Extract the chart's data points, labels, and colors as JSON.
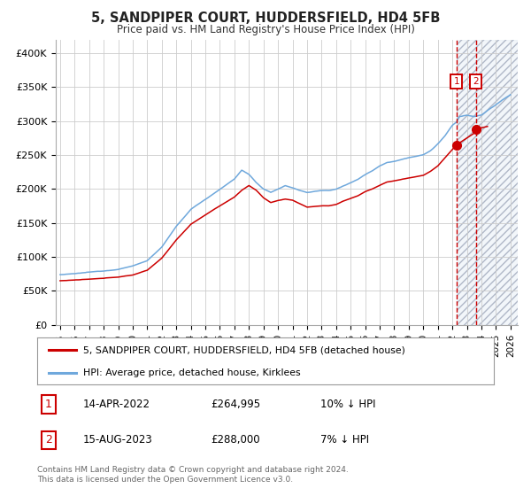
{
  "title": "5, SANDPIPER COURT, HUDDERSFIELD, HD4 5FB",
  "subtitle": "Price paid vs. HM Land Registry's House Price Index (HPI)",
  "ylim": [
    0,
    420000
  ],
  "yticks": [
    0,
    50000,
    100000,
    150000,
    200000,
    250000,
    300000,
    350000,
    400000
  ],
  "ytick_labels": [
    "£0",
    "£50K",
    "£100K",
    "£150K",
    "£200K",
    "£250K",
    "£300K",
    "£350K",
    "£400K"
  ],
  "xtick_years": [
    1995,
    1996,
    1997,
    1998,
    1999,
    2000,
    2001,
    2002,
    2003,
    2004,
    2005,
    2006,
    2007,
    2008,
    2009,
    2010,
    2011,
    2012,
    2013,
    2014,
    2015,
    2016,
    2017,
    2018,
    2019,
    2020,
    2021,
    2022,
    2023,
    2024,
    2025,
    2026
  ],
  "hpi_color": "#6fa8dc",
  "price_color": "#cc0000",
  "vline_color": "#cc0000",
  "shade_color": "#dce6f1",
  "grid_color": "#cccccc",
  "bg_color": "#ffffff",
  "legend_label_price": "5, SANDPIPER COURT, HUDDERSFIELD, HD4 5FB (detached house)",
  "legend_label_hpi": "HPI: Average price, detached house, Kirklees",
  "annotation1_date": "14-APR-2022",
  "annotation1_price": "£264,995",
  "annotation1_pct": "10% ↓ HPI",
  "annotation2_date": "15-AUG-2023",
  "annotation2_price": "£288,000",
  "annotation2_pct": "7% ↓ HPI",
  "footer": "Contains HM Land Registry data © Crown copyright and database right 2024.\nThis data is licensed under the Open Government Licence v3.0.",
  "sale1_x": 2022.28,
  "sale1_y": 264995,
  "sale2_x": 2023.62,
  "sale2_y": 288000,
  "vline1_x": 2022.28,
  "vline2_x": 2023.62,
  "shade_start": 2022.28,
  "shade_end": 2026.5,
  "xlim_left": 1994.7,
  "xlim_right": 2026.5
}
